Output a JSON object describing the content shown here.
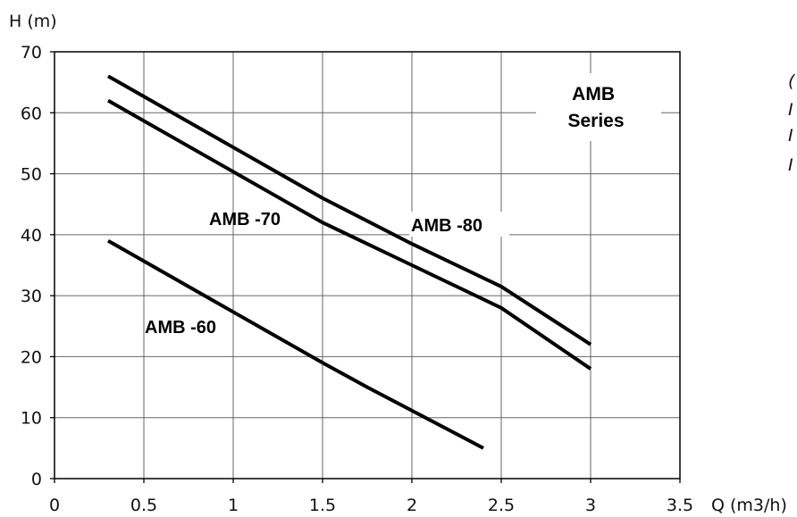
{
  "chart_data": {
    "type": "line",
    "title": "AMB\nSeries",
    "ylabel": "H (m)",
    "xlabel": "Q (m3/h)",
    "xlim": [
      0,
      3.5
    ],
    "ylim": [
      0,
      70
    ],
    "x_ticks": [
      0,
      0.5,
      1,
      1.5,
      2,
      2.5,
      3,
      3.5
    ],
    "x_tick_labels": [
      "0",
      "0.5",
      "1",
      "1.5",
      "2",
      "2.5",
      "3",
      "3.5"
    ],
    "y_ticks": [
      0,
      10,
      20,
      30,
      40,
      50,
      60,
      70
    ],
    "y_tick_labels": [
      "0",
      "10",
      "20",
      "30",
      "40",
      "50",
      "60",
      "70"
    ],
    "grid": true,
    "series": [
      {
        "name": "AMB -80",
        "x": [
          0.3,
          1.2,
          1.5,
          2.0,
          2.5,
          3.0
        ],
        "y": [
          66,
          51,
          46,
          38.5,
          31.5,
          22
        ]
      },
      {
        "name": "AMB -70",
        "x": [
          0.3,
          1.2,
          1.5,
          2.0,
          2.5,
          3.0
        ],
        "y": [
          62,
          47,
          42,
          35,
          28,
          18
        ]
      },
      {
        "name": "AMB -60",
        "x": [
          0.3,
          0.9,
          1.2,
          1.5,
          1.75,
          2.4
        ],
        "y": [
          39,
          29,
          24,
          19,
          15,
          5
        ]
      }
    ],
    "side_text": [
      "(",
      "I",
      "I",
      "I"
    ]
  }
}
